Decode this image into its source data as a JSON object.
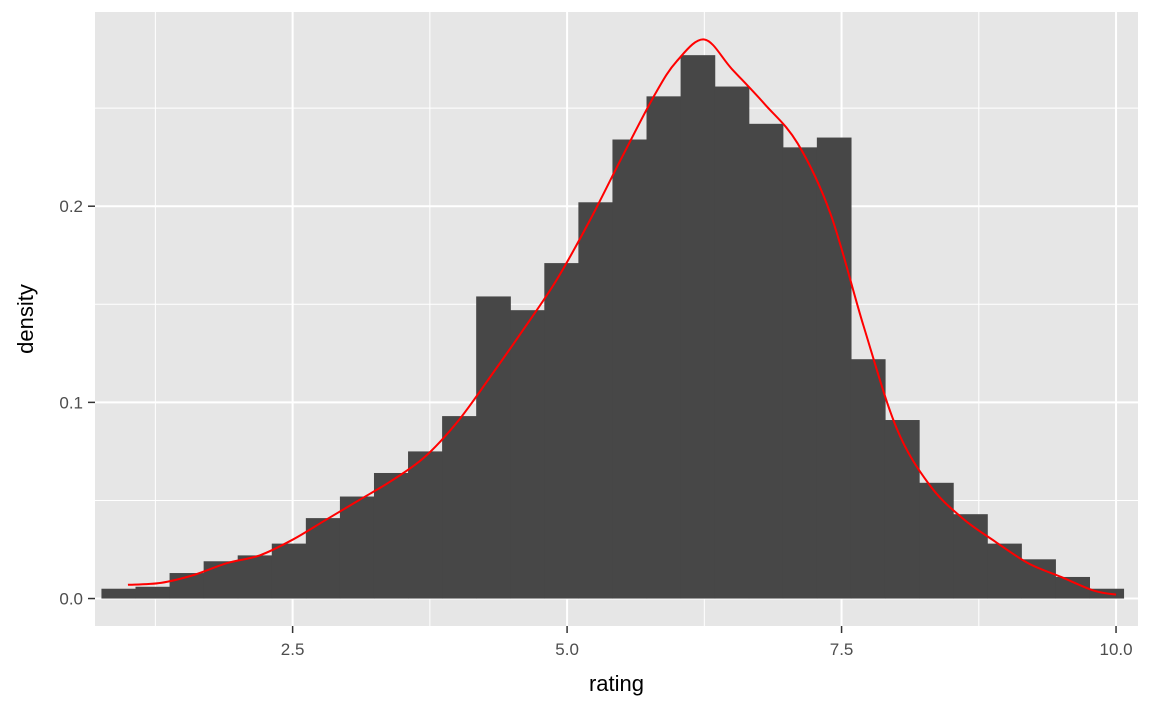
{
  "chart_data": {
    "type": "bar",
    "xlabel": "rating",
    "ylabel": "density",
    "xlim": [
      0.7,
      10.2
    ],
    "ylim": [
      -0.014,
      0.299
    ],
    "x_major_ticks": [
      2.5,
      5.0,
      7.5,
      10.0
    ],
    "x_tick_labels": [
      "2.5",
      "5.0",
      "7.5",
      "10.0"
    ],
    "x_minor_ticks": [
      1.25,
      3.75,
      6.25,
      8.75
    ],
    "y_major_ticks": [
      0.0,
      0.1,
      0.2
    ],
    "y_tick_labels": [
      "0.0",
      "0.1",
      "0.2"
    ],
    "y_minor_ticks": [
      0.05,
      0.15,
      0.25
    ],
    "grid": true,
    "bin_width": 0.3103,
    "bin_start": 0.7586,
    "values": [
      0.005,
      0.006,
      0.013,
      0.019,
      0.022,
      0.028,
      0.041,
      0.052,
      0.064,
      0.075,
      0.093,
      0.154,
      0.147,
      0.171,
      0.202,
      0.234,
      0.256,
      0.277,
      0.261,
      0.242,
      0.23,
      0.235,
      0.122,
      0.091,
      0.059,
      0.043,
      0.028,
      0.02,
      0.011,
      0.005
    ],
    "density_curve": {
      "x": [
        1.0,
        1.3,
        1.6,
        1.9,
        2.2,
        2.5,
        2.8,
        3.1,
        3.4,
        3.7,
        4.0,
        4.3,
        4.6,
        4.9,
        5.2,
        5.5,
        5.8,
        6.0,
        6.25,
        6.5,
        6.8,
        7.1,
        7.4,
        7.7,
        8.0,
        8.3,
        8.6,
        8.9,
        9.2,
        9.5,
        9.8,
        10.0
      ],
      "y": [
        0.007,
        0.008,
        0.012,
        0.018,
        0.022,
        0.03,
        0.04,
        0.05,
        0.06,
        0.072,
        0.09,
        0.113,
        0.137,
        0.162,
        0.192,
        0.225,
        0.257,
        0.274,
        0.285,
        0.27,
        0.252,
        0.232,
        0.196,
        0.139,
        0.087,
        0.058,
        0.041,
        0.029,
        0.018,
        0.011,
        0.004,
        0.002
      ],
      "color": "#ff0000"
    },
    "bar_color": "#474747",
    "panel_color": "#e6e6e6",
    "grid_color": "#ffffff"
  }
}
